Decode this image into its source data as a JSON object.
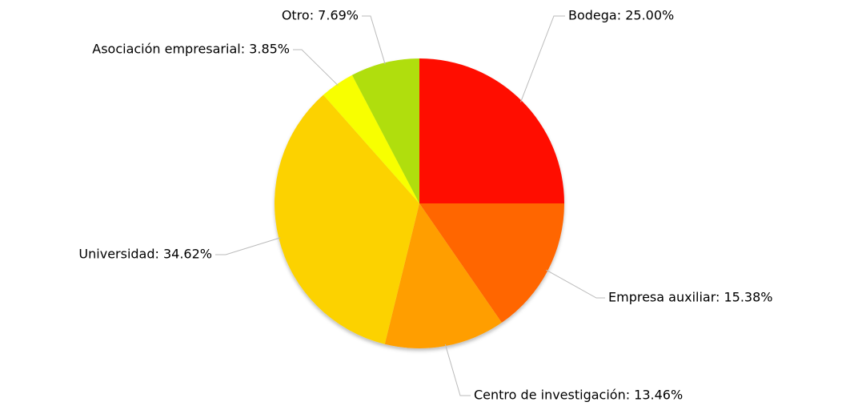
{
  "chart_data": {
    "type": "pie",
    "values": [
      25.0,
      15.38,
      13.46,
      34.62,
      3.85,
      7.69
    ],
    "value_labels": [
      "Bodega: 25.00%",
      "Empresa auxiliar: 15.38%",
      "Centro de investigación: 13.46%",
      "Universidad: 34.62%",
      "Asociación empresarial: 3.85%",
      "Otro: 7.69%"
    ],
    "colors": [
      "#ff1100",
      "#ff6600",
      "#ff9e01",
      "#fcd202",
      "#f8ff01",
      "#b0de09"
    ]
  }
}
